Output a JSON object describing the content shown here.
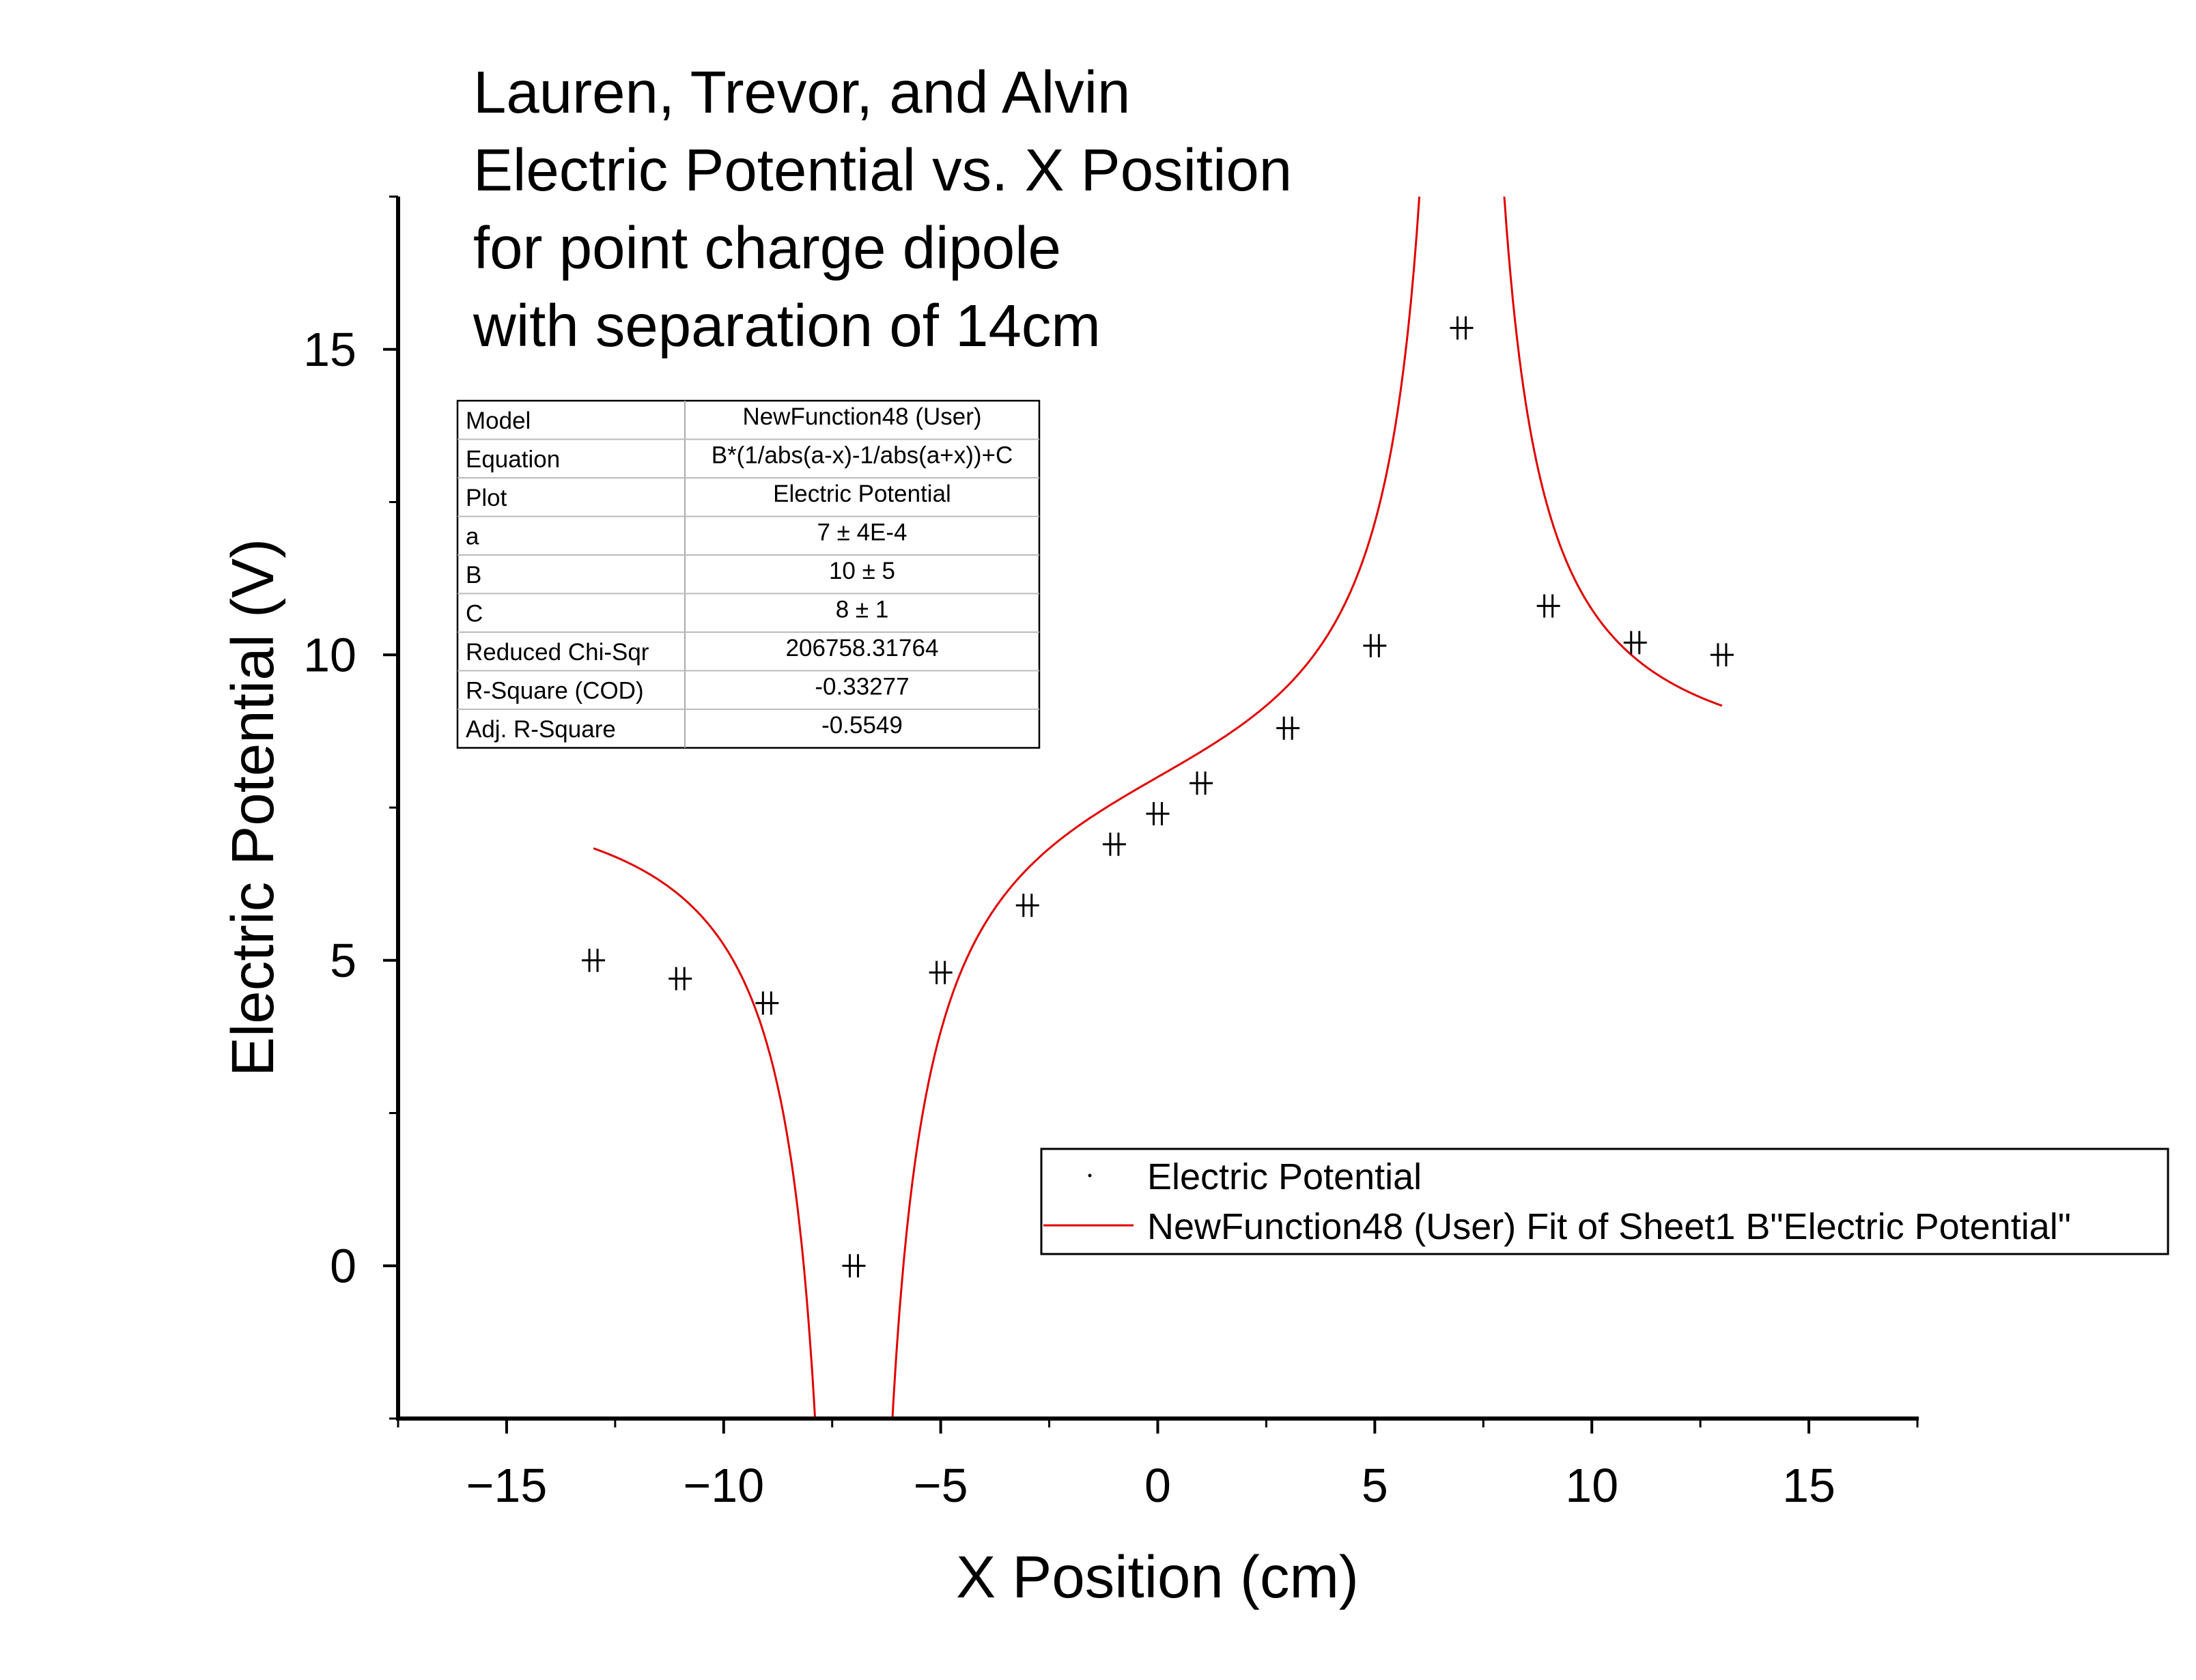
{
  "chart_data": {
    "type": "scatter",
    "title_lines": [
      "Lauren, Trevor, and Alvin",
      "Electric Potential vs. X Position",
      "for point charge dipole",
      "with separation of 14cm"
    ],
    "xlabel": "X Position (cm)",
    "ylabel": "Electric Potential (V)",
    "xlim": [
      -17.5,
      17.5
    ],
    "ylim": [
      -2.5,
      17.5
    ],
    "xticks": [
      -15,
      -10,
      -5,
      0,
      5,
      10,
      15
    ],
    "yticks": [
      0,
      5,
      10,
      15
    ],
    "grid": false,
    "series": [
      {
        "name": "Electric Potential",
        "type": "scatter",
        "color": "#000000",
        "marker": "double-cross",
        "x": [
          -13,
          -11,
          -9,
          -7,
          -5,
          -3,
          -1,
          0,
          1,
          3,
          5,
          7,
          9,
          11,
          13
        ],
        "y": [
          5.0,
          4.7,
          4.3,
          0.0,
          4.8,
          5.9,
          6.9,
          7.4,
          7.9,
          8.8,
          10.15,
          15.35,
          10.8,
          10.2,
          10.0
        ]
      },
      {
        "name": "NewFunction48 (User) Fit of Sheet1 B\"Electric Potential\"",
        "type": "line",
        "color": "#e00000",
        "model": "B*(1/abs(a-x)-1/abs(a+x))+C",
        "x_range": [
          -13,
          13
        ]
      }
    ],
    "legend": {
      "placement": "lower-right",
      "entries": [
        "Electric Potential",
        "NewFunction48 (User) Fit of Sheet1 B\"Electric Potential\""
      ]
    },
    "stats_table": {
      "rows": [
        [
          "Model",
          "NewFunction48 (User)"
        ],
        [
          "Equation",
          "B*(1/abs(a-x)-1/abs(a+x))+C"
        ],
        [
          "Plot",
          "Electric Potential"
        ],
        [
          "a",
          "7 ± 4E-4"
        ],
        [
          "B",
          "10 ± 5"
        ],
        [
          "C",
          "8 ± 1"
        ],
        [
          "Reduced Chi-Sqr",
          "206758.31764"
        ],
        [
          "R-Square (COD)",
          "-0.33277"
        ],
        [
          "Adj. R-Square",
          "-0.5549"
        ]
      ]
    }
  }
}
